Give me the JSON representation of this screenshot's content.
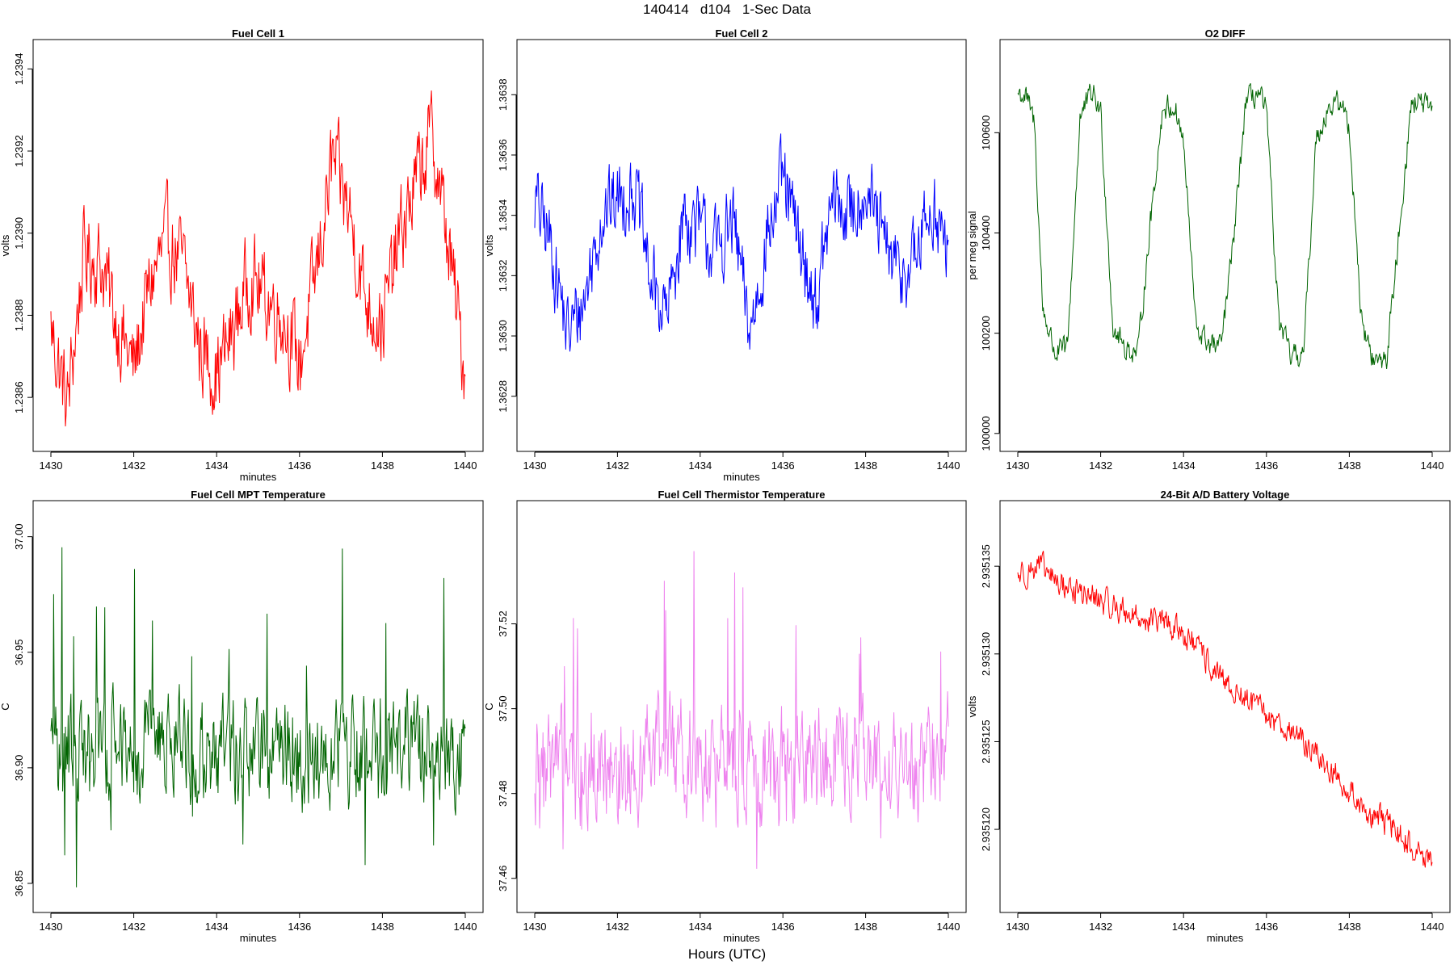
{
  "page": {
    "title": "140414   d104   1-Sec Data",
    "footer_label": "Hours (UTC)"
  },
  "chart_data": [
    {
      "type": "line",
      "title": "Fuel Cell 1",
      "xlabel": "minutes",
      "ylabel": "volts",
      "color": "#ff0000",
      "xlim": [
        1430,
        1440
      ],
      "ylim": [
        1.2385,
        1.23944
      ],
      "xticks": [
        1430,
        1432,
        1434,
        1436,
        1438,
        1440
      ],
      "xtick_labels": [
        "1430",
        "1432",
        "1434",
        "1436",
        "1438",
        "1440"
      ],
      "yticks": [
        1.2386,
        1.2388,
        1.239,
        1.2392,
        1.2394
      ],
      "ytick_labels": [
        "1.2386",
        "1.2388",
        "1.2390",
        "1.2392",
        "1.2394"
      ],
      "x": [
        1430.0,
        1430.4,
        1430.8,
        1431.2,
        1431.6,
        1432.0,
        1432.4,
        1432.8,
        1433.2,
        1433.6,
        1434.0,
        1434.4,
        1434.8,
        1435.2,
        1435.6,
        1436.0,
        1436.4,
        1436.8,
        1437.2,
        1437.6,
        1438.0,
        1438.4,
        1438.8,
        1439.2,
        1439.6,
        1440.0
      ],
      "y": [
        1.23877,
        1.23858,
        1.23895,
        1.23893,
        1.23878,
        1.23867,
        1.23888,
        1.23898,
        1.23892,
        1.23872,
        1.23866,
        1.23876,
        1.2389,
        1.23884,
        1.2388,
        1.23868,
        1.2389,
        1.23918,
        1.23905,
        1.23884,
        1.23878,
        1.23898,
        1.23912,
        1.23924,
        1.23896,
        1.23866
      ]
    },
    {
      "type": "line",
      "title": "Fuel Cell 2",
      "xlabel": "minutes",
      "ylabel": "volts",
      "color": "#0000ff",
      "xlim": [
        1430,
        1440
      ],
      "ylim": [
        1.36266,
        1.36394
      ],
      "xticks": [
        1430,
        1432,
        1434,
        1436,
        1438,
        1440
      ],
      "xtick_labels": [
        "1430",
        "1432",
        "1434",
        "1436",
        "1438",
        "1440"
      ],
      "yticks": [
        1.3628,
        1.363,
        1.3632,
        1.3634,
        1.3636,
        1.3638
      ],
      "ytick_labels": [
        "1.3628",
        "1.3630",
        "1.3632",
        "1.3634",
        "1.3636",
        "1.3638"
      ],
      "x": [
        1430.0,
        1430.4,
        1430.8,
        1431.2,
        1431.6,
        1432.0,
        1432.4,
        1432.8,
        1433.2,
        1433.6,
        1434.0,
        1434.4,
        1434.8,
        1435.2,
        1435.6,
        1436.0,
        1436.4,
        1436.8,
        1437.2,
        1437.6,
        1438.0,
        1438.4,
        1438.8,
        1439.2,
        1439.6,
        1440.0
      ],
      "y": [
        1.36345,
        1.3633,
        1.363,
        1.36312,
        1.3634,
        1.36345,
        1.3635,
        1.36318,
        1.36306,
        1.3634,
        1.36335,
        1.36328,
        1.36338,
        1.363,
        1.36332,
        1.36352,
        1.3633,
        1.3631,
        1.36345,
        1.3634,
        1.3635,
        1.36332,
        1.3632,
        1.36325,
        1.36345,
        1.36325
      ]
    },
    {
      "type": "line",
      "title": "O2 DIFF",
      "xlabel": "",
      "ylabel": "per meg signal",
      "color": "#006400",
      "xlim": [
        1430,
        1440
      ],
      "ylim": [
        99990,
        100760
      ],
      "xticks": [
        1430,
        1432,
        1434,
        1436,
        1438,
        1440
      ],
      "xtick_labels": [
        "1430",
        "1432",
        "1434",
        "1436",
        "1438",
        "1440"
      ],
      "yticks": [
        100000,
        100200,
        100400,
        100600
      ],
      "ytick_labels": [
        "100000",
        "100200",
        "100400",
        "100600"
      ],
      "x": [
        1430.0,
        1430.2,
        1430.4,
        1430.6,
        1430.9,
        1431.2,
        1431.5,
        1431.8,
        1432.0,
        1432.3,
        1432.6,
        1432.9,
        1433.2,
        1433.5,
        1433.8,
        1434.0,
        1434.3,
        1434.6,
        1434.9,
        1435.2,
        1435.5,
        1435.8,
        1436.0,
        1436.3,
        1436.6,
        1436.9,
        1437.2,
        1437.5,
        1437.8,
        1438.0,
        1438.3,
        1438.6,
        1438.9,
        1439.2,
        1439.5,
        1439.8,
        1440.0
      ],
      "y": [
        100680,
        100670,
        100620,
        100250,
        100160,
        100170,
        100630,
        100680,
        100640,
        100210,
        100170,
        100160,
        100420,
        100650,
        100650,
        100580,
        100210,
        100180,
        100170,
        100380,
        100660,
        100680,
        100640,
        100220,
        100150,
        100160,
        100590,
        100650,
        100660,
        100610,
        100220,
        100140,
        100150,
        100400,
        100660,
        100660,
        100630
      ]
    },
    {
      "type": "line",
      "title": "Fuel Cell MPT Temperature",
      "xlabel": "minutes",
      "ylabel": "C",
      "color": "#006400",
      "xlim": [
        1430,
        1440
      ],
      "ylim": [
        36.843,
        37.01
      ],
      "xticks": [
        1430,
        1432,
        1434,
        1436,
        1438,
        1440
      ],
      "xtick_labels": [
        "1430",
        "1432",
        "1434",
        "1436",
        "1438",
        "1440"
      ],
      "yticks": [
        36.85,
        36.9,
        36.95,
        37.0
      ],
      "ytick_labels": [
        "36.85",
        "36.90",
        "36.95",
        "37.00"
      ],
      "x": [
        1430.0,
        1430.5,
        1431.0,
        1431.5,
        1432.0,
        1432.5,
        1433.0,
        1433.5,
        1434.0,
        1434.5,
        1435.0,
        1435.5,
        1436.0,
        1436.5,
        1437.0,
        1437.5,
        1438.0,
        1438.5,
        1439.0,
        1439.5,
        1440.0
      ],
      "y": [
        36.903,
        36.91,
        36.905,
        36.912,
        36.906,
        36.909,
        36.911,
        36.904,
        36.906,
        36.91,
        36.905,
        36.908,
        36.904,
        36.909,
        36.907,
        36.906,
        36.909,
        36.912,
        36.906,
        36.908,
        36.903
      ]
    },
    {
      "type": "line",
      "title": "Fuel Cell Thermistor Temperature",
      "xlabel": "minutes",
      "ylabel": "C",
      "color": "#ee82ee",
      "xlim": [
        1430,
        1440
      ],
      "ylim": [
        37.455,
        37.546
      ],
      "xticks": [
        1430,
        1432,
        1434,
        1436,
        1438,
        1440
      ],
      "xtick_labels": [
        "1430",
        "1432",
        "1434",
        "1436",
        "1438",
        "1440"
      ],
      "yticks": [
        37.46,
        37.48,
        37.5,
        37.52
      ],
      "ytick_labels": [
        "37.46",
        "37.48",
        "37.50",
        "37.52"
      ],
      "x": [
        1430.0,
        1430.5,
        1431.0,
        1431.5,
        1432.0,
        1432.5,
        1433.0,
        1433.5,
        1434.0,
        1434.5,
        1435.0,
        1435.5,
        1436.0,
        1436.5,
        1437.0,
        1437.5,
        1438.0,
        1438.5,
        1439.0,
        1439.5,
        1440.0
      ],
      "y": [
        37.486,
        37.488,
        37.485,
        37.489,
        37.487,
        37.486,
        37.488,
        37.49,
        37.487,
        37.486,
        37.489,
        37.487,
        37.488,
        37.486,
        37.489,
        37.488,
        37.487,
        37.489,
        37.486,
        37.488,
        37.49
      ]
    },
    {
      "type": "line",
      "title": "24-Bit A/D Battery Voltage",
      "xlabel": "minutes",
      "ylabel": "volts",
      "color": "#ff0000",
      "xlim": [
        1430,
        1440
      ],
      "ylim": [
        2.935116,
        2.935138
      ],
      "xticks": [
        1430,
        1432,
        1434,
        1436,
        1438,
        1440
      ],
      "xtick_labels": [
        "1430",
        "1432",
        "1434",
        "1436",
        "1438",
        "1440"
      ],
      "yticks": [
        2.93512,
        2.935125,
        2.93513,
        2.935135
      ],
      "ytick_labels": [
        "2.935120",
        "2.935125",
        "2.935130",
        "2.935135"
      ],
      "x": [
        1430.0,
        1430.5,
        1431.0,
        1431.5,
        1432.0,
        1432.5,
        1433.0,
        1433.5,
        1434.0,
        1434.5,
        1435.0,
        1435.5,
        1436.0,
        1436.5,
        1437.0,
        1437.5,
        1438.0,
        1438.5,
        1439.0,
        1439.5,
        1440.0
      ],
      "y": [
        2.9351345,
        2.935135,
        2.935134,
        2.9351335,
        2.935133,
        2.9351325,
        2.935132,
        2.9351318,
        2.9351312,
        2.9351298,
        2.9351282,
        2.9351275,
        2.9351265,
        2.9351258,
        2.9351248,
        2.9351235,
        2.9351222,
        2.9351208,
        2.9351202,
        2.935119,
        2.935118
      ]
    }
  ]
}
